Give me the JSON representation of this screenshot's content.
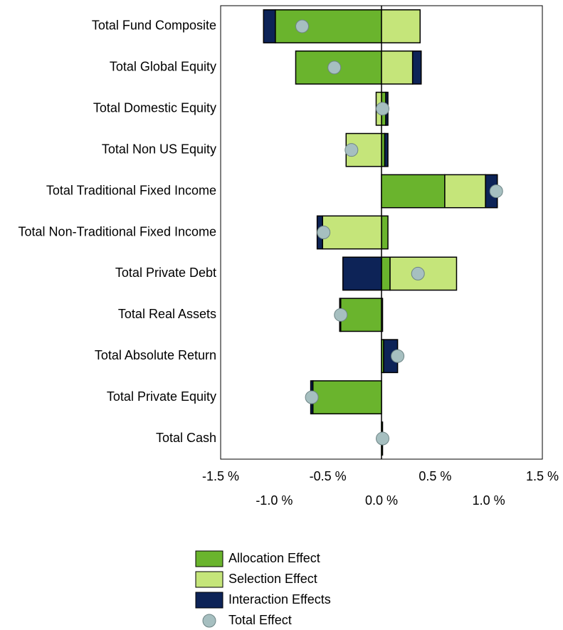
{
  "chart_data": {
    "type": "bar",
    "orientation": "horizontal",
    "stacked": true,
    "categories": [
      "Total Fund Composite",
      "Total Global Equity",
      "Total Domestic Equity",
      "Total Non US Equity",
      "Total Traditional Fixed Income",
      "Total Non-Traditional Fixed Income",
      "Total Private Debt",
      "Total Real Assets",
      "Total Absolute Return",
      "Total Private Equity",
      "Total Cash"
    ],
    "series": [
      {
        "name": "Allocation Effect",
        "color": "#6ab42d",
        "values": [
          -0.99,
          -0.8,
          0.04,
          0.03,
          0.59,
          0.06,
          0.08,
          -0.38,
          0.02,
          -0.64,
          0.01
        ]
      },
      {
        "name": "Selection Effect",
        "color": "#c5e57a",
        "values": [
          0.36,
          0.29,
          -0.05,
          -0.33,
          0.38,
          -0.55,
          0.62,
          0.01,
          0,
          0,
          0
        ]
      },
      {
        "name": "Interaction Effects",
        "color": "#0d2357",
        "values": [
          -0.11,
          0.08,
          0.02,
          0.03,
          0.11,
          -0.05,
          -0.36,
          -0.01,
          0.13,
          -0.02,
          0
        ]
      },
      {
        "name": "Total Effect",
        "color": "#a6bfc0",
        "kind": "marker",
        "values": [
          -0.74,
          -0.44,
          0.01,
          -0.28,
          1.07,
          -0.54,
          0.34,
          -0.38,
          0.15,
          -0.65,
          0.01
        ]
      }
    ],
    "xlim": [
      -1.5,
      1.5
    ],
    "xticks": [
      {
        "value": -1.5,
        "label": "-1.5 %"
      },
      {
        "value": -1.0,
        "label": "-1.0 %"
      },
      {
        "value": -0.5,
        "label": "-0.5 %"
      },
      {
        "value": 0.0,
        "label": "0.0 %"
      },
      {
        "value": 0.5,
        "label": "0.5 %"
      },
      {
        "value": 1.0,
        "label": "1.0 %"
      },
      {
        "value": 1.5,
        "label": "1.5 %"
      }
    ],
    "legend": "bottom"
  }
}
